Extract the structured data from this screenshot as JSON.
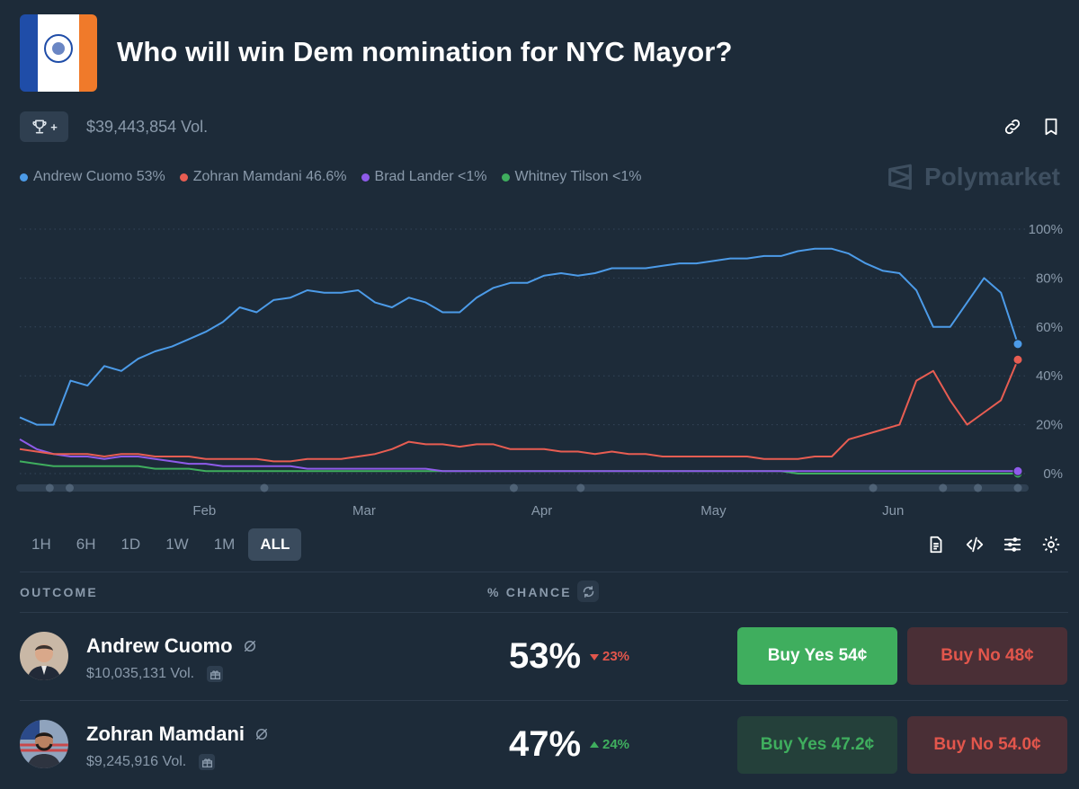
{
  "header": {
    "title": "Who will win Dem nomination for NYC Mayor?",
    "trophy_plus": "+",
    "volume": "$39,443,854 Vol."
  },
  "legend": [
    {
      "label": "Andrew Cuomo 53%",
      "color": "#4c9be8"
    },
    {
      "label": "Zohran Mamdani 46.6%",
      "color": "#e85d52"
    },
    {
      "label": "Brad Lander <1%",
      "color": "#8e5bea"
    },
    {
      "label": "Whitney Tilson <1%",
      "color": "#3fae5e"
    }
  ],
  "brand": "Polymarket",
  "chart_data": {
    "type": "line",
    "x_ticks": [
      "Feb",
      "Mar",
      "Apr",
      "May",
      "Jun"
    ],
    "y_ticks": [
      "100%",
      "80%",
      "60%",
      "40%",
      "20%",
      "0%"
    ],
    "ylim": [
      0,
      100
    ],
    "grid": true,
    "series": [
      {
        "name": "Andrew Cuomo",
        "color": "#4c9be8",
        "values": [
          23,
          20,
          20,
          38,
          36,
          44,
          42,
          47,
          50,
          52,
          55,
          58,
          62,
          68,
          66,
          71,
          72,
          75,
          74,
          74,
          75,
          70,
          68,
          72,
          70,
          66,
          66,
          72,
          76,
          78,
          78,
          81,
          82,
          81,
          82,
          84,
          84,
          84,
          85,
          86,
          86,
          87,
          88,
          88,
          89,
          89,
          91,
          92,
          92,
          90,
          86,
          83,
          82,
          75,
          60,
          60,
          70,
          80,
          74,
          53
        ]
      },
      {
        "name": "Zohran Mamdani",
        "color": "#e85d52",
        "values": [
          10,
          9,
          8,
          8,
          8,
          7,
          8,
          8,
          7,
          7,
          7,
          6,
          6,
          6,
          6,
          5,
          5,
          6,
          6,
          6,
          7,
          8,
          10,
          13,
          12,
          12,
          11,
          12,
          12,
          10,
          10,
          10,
          9,
          9,
          8,
          9,
          8,
          8,
          7,
          7,
          7,
          7,
          7,
          7,
          6,
          6,
          6,
          7,
          7,
          14,
          16,
          18,
          20,
          38,
          42,
          30,
          20,
          25,
          30,
          46.6
        ]
      },
      {
        "name": "Brad Lander",
        "color": "#8e5bea",
        "values": [
          14,
          10,
          8,
          7,
          7,
          6,
          7,
          7,
          6,
          5,
          4,
          4,
          3,
          3,
          3,
          3,
          3,
          2,
          2,
          2,
          2,
          2,
          2,
          2,
          2,
          1,
          1,
          1,
          1,
          1,
          1,
          1,
          1,
          1,
          1,
          1,
          1,
          1,
          1,
          1,
          1,
          1,
          1,
          1,
          1,
          1,
          1,
          1,
          1,
          1,
          1,
          1,
          1,
          1,
          1,
          1,
          1,
          1,
          1,
          1
        ]
      },
      {
        "name": "Whitney Tilson",
        "color": "#3fae5e",
        "values": [
          5,
          4,
          3,
          3,
          3,
          3,
          3,
          3,
          2,
          2,
          2,
          1,
          1,
          1,
          1,
          1,
          1,
          1,
          1,
          1,
          1,
          1,
          1,
          1,
          1,
          1,
          1,
          1,
          1,
          1,
          1,
          1,
          1,
          1,
          1,
          1,
          1,
          1,
          1,
          1,
          1,
          1,
          1,
          1,
          1,
          1,
          0,
          0,
          0,
          0,
          0,
          0,
          0,
          0,
          0,
          0,
          0,
          0,
          0,
          0
        ]
      }
    ]
  },
  "ranges": [
    {
      "label": "1H",
      "active": false
    },
    {
      "label": "6H",
      "active": false
    },
    {
      "label": "1D",
      "active": false
    },
    {
      "label": "1W",
      "active": false
    },
    {
      "label": "1M",
      "active": false
    },
    {
      "label": "ALL",
      "active": true
    }
  ],
  "table": {
    "outcome_header": "OUTCOME",
    "chance_header": "% CHANCE"
  },
  "outcomes": [
    {
      "name": "Andrew Cuomo",
      "volume": "$10,035,131 Vol.",
      "chance": "53%",
      "delta": "23%",
      "delta_dir": "down",
      "buy_yes": "Buy Yes 54¢",
      "buy_no": "Buy No 48¢"
    },
    {
      "name": "Zohran Mamdani",
      "volume": "$9,245,916 Vol.",
      "chance": "47%",
      "delta": "24%",
      "delta_dir": "up",
      "buy_yes": "Buy Yes 47.2¢",
      "buy_no": "Buy No 54.0¢"
    }
  ]
}
